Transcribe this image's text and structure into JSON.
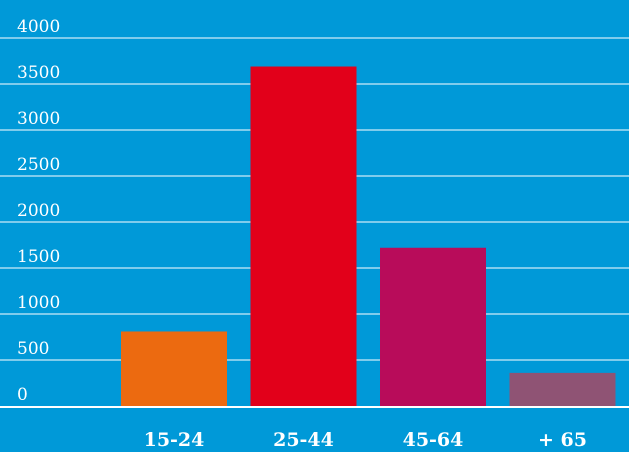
{
  "chart_data": {
    "type": "bar",
    "categories": [
      "15-24",
      "25-44",
      "45-64",
      "+ 65"
    ],
    "values": [
      810,
      3690,
      1720,
      360
    ],
    "colors": [
      "#ec6a10",
      "#e2001a",
      "#b80c5a",
      "#8f5374"
    ],
    "title": "",
    "xlabel": "",
    "ylabel": "",
    "ylim": [
      0,
      4000
    ],
    "yticks": [
      0,
      500,
      1000,
      1500,
      2000,
      2500,
      3000,
      3500,
      4000
    ],
    "ytick_labels": [
      "0",
      "500",
      "1000",
      "1500",
      "2000",
      "2500",
      "3000",
      "3500",
      "4000"
    ],
    "grid": true,
    "background": "#0099d8",
    "legend": "none"
  }
}
